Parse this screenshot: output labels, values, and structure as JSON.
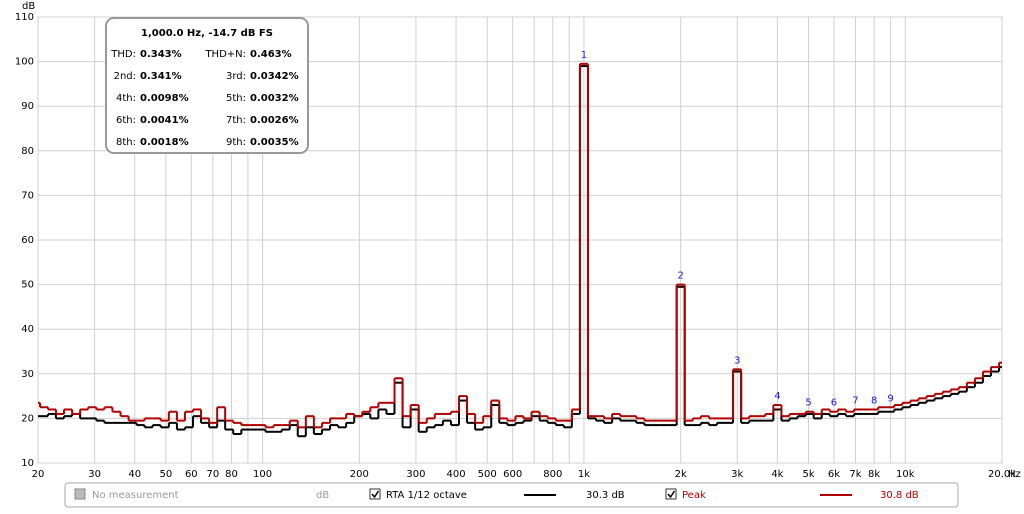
{
  "chart_data": {
    "type": "line",
    "drawstyle": "steps",
    "xscale": "log",
    "grid": true,
    "y_unit": "dB",
    "x_unit": "Hz",
    "xlim": [
      20,
      20000
    ],
    "ylim": [
      10,
      110
    ],
    "yticks": [
      10,
      20,
      30,
      40,
      50,
      60,
      70,
      80,
      90,
      100,
      110
    ],
    "xticks": [
      20,
      30,
      40,
      50,
      60,
      70,
      80,
      100,
      200,
      300,
      400,
      500,
      600,
      800,
      {
        "value": 1000,
        "label": "1k"
      },
      {
        "value": 2000,
        "label": "2k"
      },
      {
        "value": 3000,
        "label": "3k"
      },
      {
        "value": 4000,
        "label": "4k"
      },
      {
        "value": 5000,
        "label": "5k"
      },
      {
        "value": 6000,
        "label": "6k"
      },
      {
        "value": 7000,
        "label": "7k"
      },
      {
        "value": 8000,
        "label": "8k"
      },
      {
        "value": 10000,
        "label": "10k"
      },
      {
        "value": 20000,
        "label": "20.0k"
      }
    ],
    "xminor": [
      90,
      700,
      900,
      9000
    ],
    "x": [
      19.7,
      20.9,
      22.1,
      23.4,
      24.8,
      26.3,
      27.8,
      29.5,
      31.3,
      33.1,
      35.1,
      37.2,
      39.4,
      41.7,
      44.2,
      46.8,
      49.6,
      52.6,
      55.7,
      59.0,
      62.5,
      66.2,
      70.2,
      74.3,
      78.7,
      83.4,
      88.4,
      93.6,
      99.2,
      105.1,
      111.4,
      118.0,
      125,
      132.4,
      140.3,
      148.6,
      157.5,
      166.9,
      176.8,
      187.3,
      198.4,
      210.2,
      222.7,
      236.0,
      250,
      264.9,
      280.6,
      297.3,
      315.0,
      333.7,
      353.6,
      374.6,
      396.9,
      420.4,
      445.4,
      471.9,
      500,
      529.7,
      561.2,
      594.6,
      630.0,
      667.4,
      707.1,
      749.2,
      793.7,
      840.9,
      890.9,
      943.9,
      1000,
      1059,
      1122,
      1189,
      1260,
      1335,
      1414,
      1498,
      1587,
      1682,
      1782,
      1888,
      2000,
      2119,
      2245,
      2378,
      2520,
      2670,
      2828,
      2997,
      3175,
      3364,
      3564,
      3775,
      4000,
      4238,
      4490,
      4757,
      5040,
      5339,
      5657,
      5993,
      6350,
      6727,
      7127,
      7551,
      8000,
      8476,
      8980,
      9514,
      10079,
      10679,
      11314,
      11986,
      12699,
      13454,
      14254,
      15102,
      16000,
      16951,
      17959,
      19027,
      20159
    ],
    "series": [
      {
        "name": "RTA 1/12 octave",
        "color": "#000000",
        "legend_value": "30.3 dB",
        "values": [
          20.5,
          20.5,
          21,
          20,
          20.5,
          21,
          20,
          20,
          19.5,
          19,
          19,
          19,
          19,
          18.5,
          18,
          18.5,
          18,
          19,
          17.5,
          18,
          20.5,
          19,
          18,
          19.5,
          17.5,
          16.5,
          17.5,
          17.5,
          17.5,
          17,
          17,
          17.5,
          18.5,
          16,
          18,
          16.5,
          17.5,
          18.5,
          18,
          19,
          20.5,
          21,
          20,
          22,
          21,
          28,
          18,
          22,
          17,
          18,
          18.5,
          19.5,
          18.5,
          24,
          19,
          17.5,
          18,
          23,
          19,
          18.5,
          19,
          19.5,
          20.5,
          19.5,
          19,
          18.5,
          18,
          21,
          99,
          20,
          19.5,
          19,
          20,
          19.5,
          19.5,
          19,
          18.5,
          18.5,
          18.5,
          18.5,
          49.5,
          18.5,
          18.5,
          19,
          18.5,
          19,
          19,
          30.5,
          19,
          19.5,
          19.5,
          19.5,
          22,
          19.5,
          20,
          20.5,
          21,
          20,
          21,
          20.5,
          21,
          20.5,
          21,
          21,
          21,
          21.5,
          21.5,
          22,
          22.5,
          23,
          23.5,
          24,
          24.5,
          25,
          25.5,
          26,
          27,
          28,
          29.5,
          30.5,
          31.5
        ]
      },
      {
        "name": "Peak",
        "color": "#b00000",
        "legend_value": "30.8 dB",
        "values": [
          23.5,
          22.5,
          22,
          21,
          22,
          21,
          22,
          22.5,
          22,
          22.5,
          21.5,
          20.5,
          19.5,
          19.5,
          20,
          20,
          19.5,
          21.5,
          19.5,
          21.5,
          22,
          20,
          19,
          22.5,
          19.5,
          19,
          18.5,
          18.5,
          18.5,
          18,
          18.5,
          18.5,
          19.5,
          18,
          20.5,
          18,
          19,
          20,
          20,
          21,
          20.5,
          21.5,
          22.5,
          23.5,
          23.5,
          29,
          20.5,
          23,
          19,
          20,
          21,
          21,
          21.5,
          25,
          21,
          19,
          20.5,
          24,
          20,
          19.5,
          20.5,
          20,
          21.5,
          20.5,
          20,
          19.5,
          19.5,
          22,
          99.5,
          20.5,
          20.5,
          20,
          21,
          20.5,
          20.5,
          20,
          19.5,
          19.5,
          19.5,
          19.5,
          50,
          19.5,
          20,
          20.5,
          20,
          20,
          20,
          31,
          20,
          20.5,
          20.5,
          21,
          23,
          20.5,
          21,
          21,
          21.5,
          21,
          22,
          21.5,
          22,
          21.5,
          22,
          22,
          22,
          22.5,
          22.5,
          23,
          23.5,
          24,
          24.5,
          25,
          25.5,
          26,
          26.5,
          27,
          28,
          29,
          30.5,
          31.5,
          32.5
        ]
      }
    ],
    "harmonics": [
      {
        "label": "1",
        "freq": 1000
      },
      {
        "label": "2",
        "freq": 2000
      },
      {
        "label": "3",
        "freq": 3000
      },
      {
        "label": "4",
        "freq": 4000
      },
      {
        "label": "5",
        "freq": 5000
      },
      {
        "label": "6",
        "freq": 6000
      },
      {
        "label": "7",
        "freq": 7000
      },
      {
        "label": "8",
        "freq": 8000
      },
      {
        "label": "9",
        "freq": 9000
      }
    ],
    "harmonic_color": "#1a1adc",
    "info_box": {
      "title": "1,000.0 Hz, -14.7 dB FS",
      "rows": [
        [
          [
            "THD:",
            "0.343%"
          ],
          [
            "THD+N:",
            "0.463%"
          ]
        ],
        [
          [
            "2nd:",
            "0.341%"
          ],
          [
            "3rd:",
            "0.0342%"
          ]
        ],
        [
          [
            "4th:",
            "0.0098%"
          ],
          [
            "5th:",
            "0.0032%"
          ]
        ],
        [
          [
            "6th:",
            "0.0041%"
          ],
          [
            "7th:",
            "0.0026%"
          ]
        ],
        [
          [
            "8th:",
            "0.0018%"
          ],
          [
            "9th:",
            "0.0035%"
          ]
        ]
      ]
    },
    "legend_bar": {
      "empty_label": "No measurement",
      "empty_unit": "dB"
    }
  }
}
